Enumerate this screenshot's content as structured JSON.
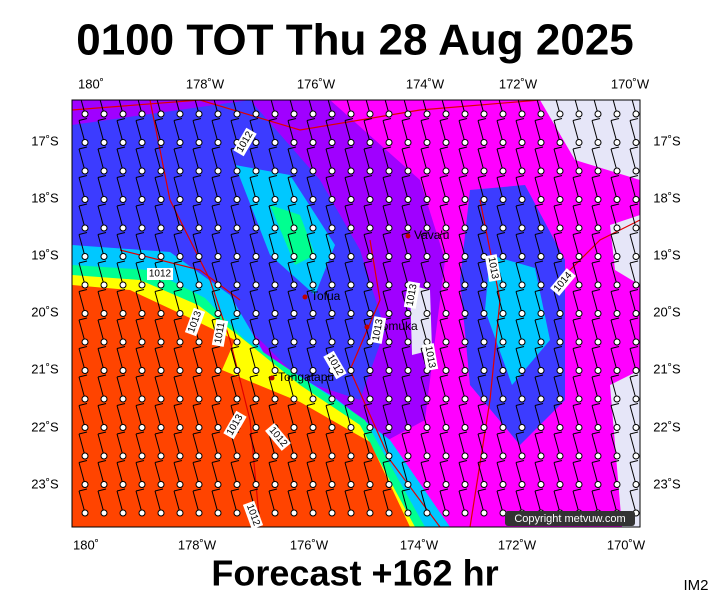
{
  "title": "0100 TOT Thu 28 Aug 2025",
  "lon_labels_top": [
    "180˚",
    "178˚W",
    "176˚W",
    "174˚W",
    "172˚W",
    "170˚W"
  ],
  "lon_labels_bottom": [
    "180˚",
    "178˚W",
    "176˚W",
    "174˚W",
    "172˚W",
    "170˚W"
  ],
  "lat_labels_left": [
    "17˚S",
    "18˚S",
    "19˚S",
    "20˚S",
    "21˚S",
    "22˚S",
    "23˚S"
  ],
  "lat_labels_right": [
    "17˚S",
    "18˚S",
    "19˚S",
    "20˚S",
    "21˚S",
    "22˚S",
    "23˚S"
  ],
  "places": [
    "Vava'u",
    "Tofua",
    "Nomuka",
    "Tongatapu"
  ],
  "isobar_labels": [
    "1012",
    "1012",
    "1013",
    "1011",
    "1013",
    "1012",
    "1012",
    "1013",
    "1013",
    "1013",
    "1013",
    "1014",
    "1012"
  ],
  "copyright": "Copyright metvuw.com",
  "footer": "Forecast +162 hr",
  "image_id": "IM2"
}
